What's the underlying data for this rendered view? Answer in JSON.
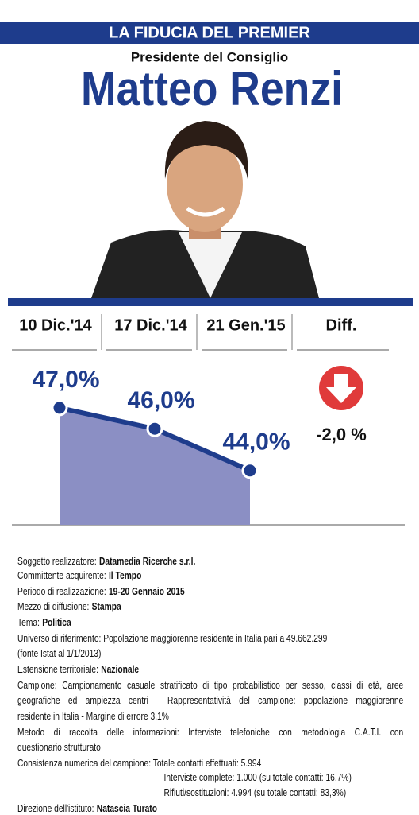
{
  "header": {
    "title": "LA FIDUCIA DEL PREMIER",
    "subtitle": "Presidente del Consiglio",
    "name": "Matteo Renzi"
  },
  "chart_data": {
    "type": "area",
    "categories": [
      "10 Dic.'14",
      "17 Dic.'14",
      "21 Gen.'15"
    ],
    "values": [
      47,
      46,
      44
    ],
    "value_labels": [
      "47,0%",
      "46,0%",
      "44,0%"
    ],
    "color": "#1e3c8c",
    "fill": "#8b8fc4",
    "diff": {
      "label": "Diff.",
      "value": -2,
      "value_label": "-2,0 %",
      "color": "#e03a3a"
    }
  },
  "notes": {
    "soggetto": {
      "label": "Soggetto realizzatore:",
      "value": "Datamedia Ricerche s.r.l."
    },
    "committente": {
      "label": "Committente acquirente:",
      "value": "Il Tempo"
    },
    "periodo": {
      "label": "Periodo di realizzazione:",
      "value": "19-20 Gennaio 2015"
    },
    "mezzo": {
      "label": "Mezzo di diffusione:",
      "value": "Stampa"
    },
    "tema": {
      "label": "Tema:",
      "value": "Politica"
    },
    "universo": [
      "Universo di riferimento: Popolazione maggiorenne residente in Italia pari a 49.662.299",
      "(fonte Istat al 1/1/2013)"
    ],
    "estensione": {
      "label": "Estensione territoriale:",
      "value": "Nazionale"
    },
    "campione": [
      "Campione: Campionamento casuale stratificato di tipo probabilistico per sesso, classi di età, aree",
      "geografiche ed ampiezza centri - Rappresentatività del campione: popolazione maggiorenne",
      "residente in Italia - Margine di errore 3,1%"
    ],
    "metodo": [
      "Metodo di raccolta delle informazioni: Interviste telefoniche con metodologia C.A.T.I. con",
      "questionario strutturato"
    ],
    "consistenza": [
      "Consistenza numerica del campione: Totale contatti effettuati: 5.994",
      "Interviste complete: 1.000 (su totale contatti: 16,7%)",
      "Rifiuti/sostituzioni: 4.994 (su totale contatti: 83,3%)"
    ],
    "direzione": {
      "label": "Direzione dell'istituto:",
      "value": "Natascia Turato"
    }
  }
}
